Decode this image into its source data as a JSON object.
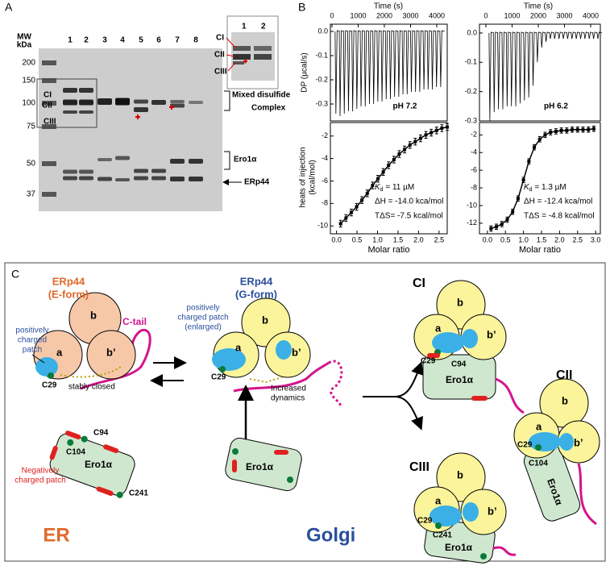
{
  "panel_a": {
    "label": "A",
    "mw_title": [
      "MW",
      "kDa"
    ],
    "mw_markers": [
      200,
      150,
      100,
      75,
      50,
      37
    ],
    "lanes": [
      "1",
      "2",
      "3",
      "4",
      "5",
      "6",
      "7",
      "8"
    ],
    "complex_labels": [
      "CI",
      "CII",
      "CIII"
    ],
    "mixed": [
      "Mixed disulfide",
      "Complex"
    ],
    "ero1": "Ero1α",
    "erp44": "ERp44",
    "inset_lanes": [
      "1",
      "2"
    ],
    "inset_labels": [
      "CI",
      "CII",
      "CIII"
    ]
  },
  "panel_b": {
    "label": "B",
    "time_label": "Time (s)",
    "dp_label": "DP (µcal/s)",
    "heat_label": [
      "heats of injection",
      "(kcal/mol)"
    ],
    "molar_label": "Molar ratio",
    "kd_symbol": "K",
    "kd_sub": "d",
    "plots": [
      {
        "condition": "pH 7.2",
        "kd": " = 11 µM",
        "dh": "ΔH = -14.0 kca/mol",
        "tds": "TΔS= -7.5 kcal/mol",
        "time_lim": [
          -60,
          4400
        ],
        "time_ticks": [
          0,
          1000,
          2000,
          3000,
          4000
        ],
        "dp_lim": [
          -0.37,
          0.03
        ],
        "dp_ticks": [
          {
            "value": 0,
            "label": "0.0"
          },
          -0.1,
          -0.2,
          -0.3
        ],
        "times": [
          150,
          310,
          470,
          630,
          790,
          950,
          1110,
          1270,
          1430,
          1590,
          1750,
          1910,
          2070,
          2230,
          2390,
          2550,
          2710,
          2870,
          3030,
          3190,
          3350,
          3510,
          3670,
          3830,
          3990,
          4150
        ],
        "peaks": [
          -0.34,
          -0.35,
          -0.34,
          -0.33,
          -0.33,
          -0.32,
          -0.31,
          -0.31,
          -0.3,
          -0.3,
          -0.29,
          -0.29,
          -0.28,
          -0.28,
          -0.27,
          -0.27,
          -0.26,
          -0.26,
          -0.25,
          -0.25,
          -0.25,
          -0.24,
          -0.24,
          -0.24,
          -0.23,
          -0.23
        ],
        "ratio_lim": [
          -0.15,
          2.7
        ],
        "ratio_ticks": [
          {
            "value": 0,
            "label": "0.0"
          },
          0.5,
          {
            "value": 1,
            "label": "1.0"
          },
          1.5,
          {
            "value": 2,
            "label": "2.0"
          },
          2.5
        ],
        "heat_lim": [
          -10.7,
          -0.8
        ],
        "heat_ticks": [
          -2,
          -4,
          -6,
          -8,
          -10
        ],
        "ratio": [
          0.1,
          0.23,
          0.36,
          0.49,
          0.62,
          0.75,
          0.88,
          1.01,
          1.14,
          1.27,
          1.4,
          1.53,
          1.66,
          1.79,
          1.92,
          2.05,
          2.18,
          2.31,
          2.44,
          2.57,
          2.7
        ],
        "heats": [
          -9.8,
          -9.3,
          -8.8,
          -8.3,
          -7.7,
          -7.1,
          -6.4,
          -5.8,
          -5.2,
          -4.6,
          -4.1,
          -3.6,
          -3.2,
          -2.8,
          -2.5,
          -2.2,
          -1.9,
          -1.7,
          -1.5,
          -1.3,
          -1.2
        ],
        "error": 0.3
      },
      {
        "condition": "pH 6.2",
        "kd": " = 1.3 µM",
        "dh": "ΔH = -12.4 kca/mol",
        "tds": "TΔS = -4.8 kcal/mol",
        "time_lim": [
          -246,
          4369
        ],
        "time_ticks": [
          0,
          1000,
          2000,
          3000,
          4000
        ],
        "dp_lim": [
          -0.3,
          0.03
        ],
        "dp_ticks": [
          {
            "value": 0,
            "label": "0.0"
          },
          -0.1,
          -0.2,
          -0.3
        ],
        "times": [
          150,
          315,
          480,
          645,
          810,
          975,
          1140,
          1305,
          1470,
          1635,
          1800,
          1965,
          2130,
          2295,
          2460,
          2625,
          2790,
          2955,
          3120,
          3285,
          3450,
          3615,
          3780,
          3945,
          4110,
          4275
        ],
        "peaks": [
          -0.3,
          -0.27,
          -0.26,
          -0.26,
          -0.25,
          -0.25,
          -0.25,
          -0.24,
          -0.23,
          -0.22,
          -0.18,
          -0.1,
          -0.05,
          -0.03,
          -0.02,
          -0.02,
          -0.02,
          -0.02,
          -0.02,
          -0.02,
          -0.02,
          -0.02,
          -0.02,
          -0.02,
          -0.02,
          -0.02
        ],
        "ratio_lim": [
          -0.22,
          3.13
        ],
        "ratio_ticks": [
          {
            "value": 0,
            "label": "0.0"
          },
          0.5,
          {
            "value": 1,
            "label": "1.0"
          },
          1.5,
          {
            "value": 2,
            "label": "2.0"
          },
          2.5,
          {
            "value": 3,
            "label": "3.0"
          }
        ],
        "heat_lim": [
          -13.2,
          -0.6
        ],
        "heat_ticks": [
          -2,
          -4,
          -6,
          -8,
          -10,
          -12
        ],
        "ratio": [
          0.1,
          0.25,
          0.4,
          0.55,
          0.7,
          0.85,
          1.0,
          1.15,
          1.3,
          1.45,
          1.6,
          1.75,
          1.9,
          2.05,
          2.2,
          2.35,
          2.5,
          2.65,
          2.8,
          2.95
        ],
        "heats": [
          -12.6,
          -12.4,
          -12.1,
          -11.6,
          -10.7,
          -9.2,
          -7.1,
          -5.0,
          -3.4,
          -2.5,
          -2.0,
          -1.7,
          -1.6,
          -1.5,
          -1.5,
          -1.4,
          -1.4,
          -1.4,
          -1.4,
          -1.3
        ],
        "error": 0.3
      }
    ]
  },
  "panel_c": {
    "label": "C",
    "e_form": [
      "ERp44",
      "(E-form)"
    ],
    "g_form": [
      "ERp44",
      "(G-form)"
    ],
    "patch": [
      "positively",
      "charged",
      "patch"
    ],
    "patch_enlarged": [
      "positively",
      "charged patch",
      "(enlarged)"
    ],
    "c_tail": "C-tail",
    "stably_closed": "stably closed",
    "neg_patch": [
      "Negatively",
      "charged patch"
    ],
    "dynamics": [
      "Increased",
      "dynamics"
    ],
    "domains": {
      "a": "a",
      "b": "b",
      "bp": "b’"
    },
    "cys": {
      "c29": "C29",
      "c94": "C94",
      "c104": "C104",
      "c241": "C241"
    },
    "ero1": "Ero1α",
    "complexes": {
      "ci": "CI",
      "cii": "CII",
      "ciii": "CIII"
    },
    "er": "ER",
    "golgi": "Golgi"
  }
}
